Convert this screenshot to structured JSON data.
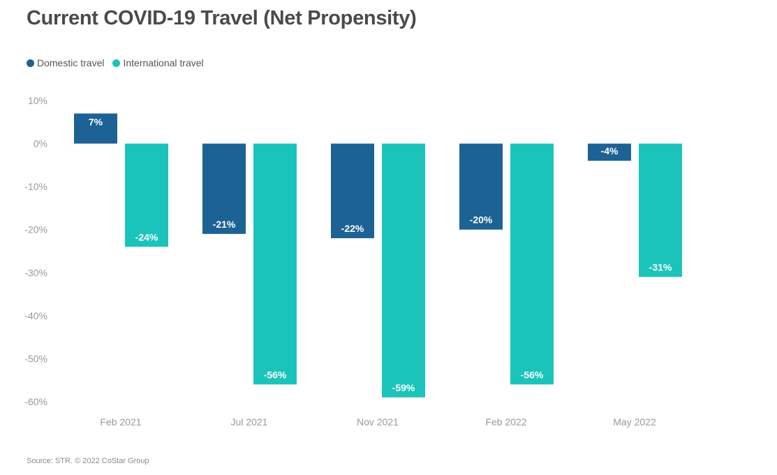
{
  "title": "Current COVID-19 Travel (Net Propensity)",
  "source": "Source: STR. © 2022 CoStar Group",
  "colors": {
    "domestic": "#1d6295",
    "international": "#1bc4ba",
    "axis_text": "#999999",
    "label_dark": "#444444"
  },
  "chart_data": {
    "type": "bar",
    "title": "Current COVID-19 Travel (Net Propensity)",
    "xlabel": "",
    "ylabel": "",
    "categories": [
      "Feb 2021",
      "Jul 2021",
      "Nov 2021",
      "Feb 2022",
      "May 2022"
    ],
    "series": [
      {
        "name": "Domestic travel",
        "values": [
          7,
          -21,
          -22,
          -20,
          -4
        ],
        "labels": [
          "7%",
          "-21%",
          "-22%",
          "-20%",
          "-4%"
        ]
      },
      {
        "name": "International travel",
        "values": [
          -24,
          -56,
          -59,
          -56,
          -31
        ],
        "labels": [
          "-24%",
          "-56%",
          "-59%",
          "-56%",
          "-31%"
        ]
      }
    ],
    "ylim": [
      -60,
      10
    ],
    "yticks": [
      10,
      0,
      -10,
      -20,
      -30,
      -40,
      -50,
      -60
    ],
    "ytick_labels": [
      "10%",
      "0%",
      "-10%",
      "-20%",
      "-30%",
      "-40%",
      "-50%",
      "-60%"
    ],
    "grid": false,
    "legend_position": "top-left"
  }
}
